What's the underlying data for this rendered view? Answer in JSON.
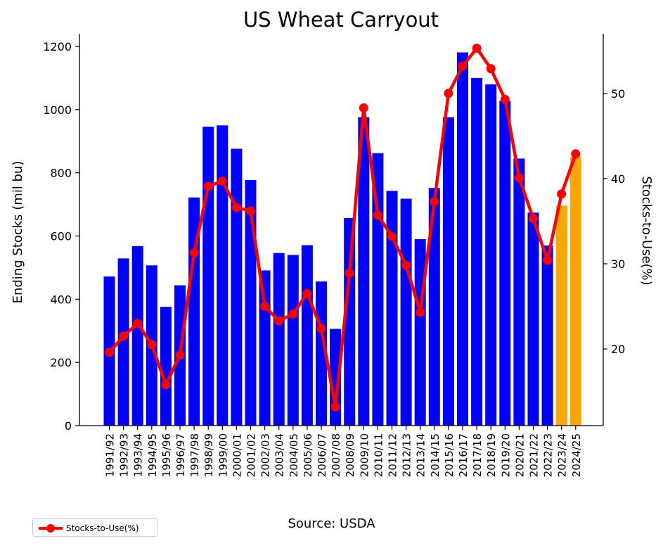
{
  "chart_data": {
    "type": "bar",
    "title": "US Wheat Carryout",
    "ylabel": "Ending Stocks (mil bu)",
    "y2label": "Stocks-to-Use(%)",
    "ylim": [
      0,
      1240
    ],
    "y2lim": [
      11,
      57
    ],
    "yticks": [
      0,
      200,
      400,
      600,
      800,
      1000,
      1200
    ],
    "y2ticks": [
      20,
      30,
      40,
      50
    ],
    "grid": false,
    "categories": [
      "1991/92",
      "1992/93",
      "1993/94",
      "1994/95",
      "1995/96",
      "1996/97",
      "1997/98",
      "1998/99",
      "1999/00",
      "2000/01",
      "2001/02",
      "2002/03",
      "2003/04",
      "2004/05",
      "2005/06",
      "2006/07",
      "2007/08",
      "2008/09",
      "2009/10",
      "2010/11",
      "2011/12",
      "2012/13",
      "2013/14",
      "2014/15",
      "2015/16",
      "2016/17",
      "2017/18",
      "2018/19",
      "2019/20",
      "2020/21",
      "2021/22",
      "2022/23",
      "2023/24",
      "2024/25"
    ],
    "series": [
      {
        "name": "Ending Stocks",
        "kind": "bar",
        "values": [
          472,
          529,
          568,
          507,
          376,
          444,
          722,
          946,
          950,
          876,
          777,
          491,
          546,
          540,
          571,
          456,
          306,
          657,
          976,
          862,
          743,
          718,
          590,
          752,
          976,
          1181,
          1100,
          1080,
          1028,
          845,
          674,
          570,
          696,
          850
        ],
        "bar_colors": [
          "#0000ff",
          "#0000ff",
          "#0000ff",
          "#0000ff",
          "#0000ff",
          "#0000ff",
          "#0000ff",
          "#0000ff",
          "#0000ff",
          "#0000ff",
          "#0000ff",
          "#0000ff",
          "#0000ff",
          "#0000ff",
          "#0000ff",
          "#0000ff",
          "#0000ff",
          "#0000ff",
          "#0000ff",
          "#0000ff",
          "#0000ff",
          "#0000ff",
          "#0000ff",
          "#0000ff",
          "#0000ff",
          "#0000ff",
          "#0000ff",
          "#0000ff",
          "#0000ff",
          "#0000ff",
          "#0000ff",
          "#0000ff",
          "#ffa500",
          "#ffa500"
        ]
      },
      {
        "name": "Stocks-to-Use(%)",
        "kind": "line",
        "axis": "right",
        "color": "#ff0000",
        "values": [
          19.6,
          21.5,
          23.0,
          20.5,
          15.8,
          19.3,
          31.3,
          39.1,
          39.7,
          36.6,
          36.2,
          25.0,
          23.3,
          24.1,
          26.5,
          22.4,
          13.2,
          28.9,
          48.3,
          35.7,
          33.2,
          29.8,
          24.3,
          37.3,
          50.0,
          53.2,
          55.3,
          52.9,
          49.3,
          40.1,
          35.3,
          30.4,
          38.2,
          42.9
        ]
      }
    ],
    "legend": {
      "position": "bottom-left",
      "entries": [
        "Stocks-to-Use(%)"
      ]
    },
    "source": "Source: USDA"
  }
}
